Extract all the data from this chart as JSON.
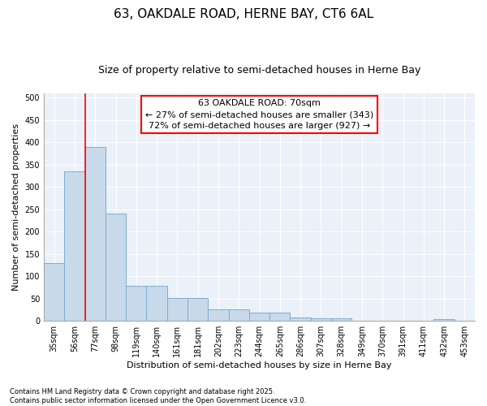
{
  "title1": "63, OAKDALE ROAD, HERNE BAY, CT6 6AL",
  "title2": "Size of property relative to semi-detached houses in Herne Bay",
  "xlabel": "Distribution of semi-detached houses by size in Herne Bay",
  "ylabel": "Number of semi-detached properties",
  "categories": [
    "35sqm",
    "56sqm",
    "77sqm",
    "98sqm",
    "119sqm",
    "140sqm",
    "161sqm",
    "181sqm",
    "202sqm",
    "223sqm",
    "244sqm",
    "265sqm",
    "286sqm",
    "307sqm",
    "328sqm",
    "349sqm",
    "370sqm",
    "391sqm",
    "411sqm",
    "432sqm",
    "453sqm"
  ],
  "values": [
    130,
    335,
    390,
    240,
    78,
    78,
    51,
    51,
    26,
    26,
    19,
    19,
    8,
    6,
    6,
    1,
    1,
    0,
    0,
    4,
    0
  ],
  "bar_color": "#c8d9ea",
  "bar_edge_color": "#7aaed4",
  "vline_x": 1.5,
  "vline_color": "red",
  "annotation_line1": "63 OAKDALE ROAD: 70sqm",
  "annotation_line2": "← 27% of semi-detached houses are smaller (343)",
  "annotation_line3": "72% of semi-detached houses are larger (927) →",
  "annotation_box_color": "red",
  "ylim": [
    0,
    510
  ],
  "yticks": [
    0,
    50,
    100,
    150,
    200,
    250,
    300,
    350,
    400,
    450,
    500
  ],
  "footer": "Contains HM Land Registry data © Crown copyright and database right 2025.\nContains public sector information licensed under the Open Government Licence v3.0.",
  "bg_color": "#ffffff",
  "plot_bg_color": "#eaf1f8",
  "grid_color": "#ffffff",
  "title1_fontsize": 11,
  "title2_fontsize": 9,
  "tick_fontsize": 7,
  "ylabel_fontsize": 8,
  "xlabel_fontsize": 8,
  "footer_fontsize": 6,
  "annot_fontsize": 8
}
